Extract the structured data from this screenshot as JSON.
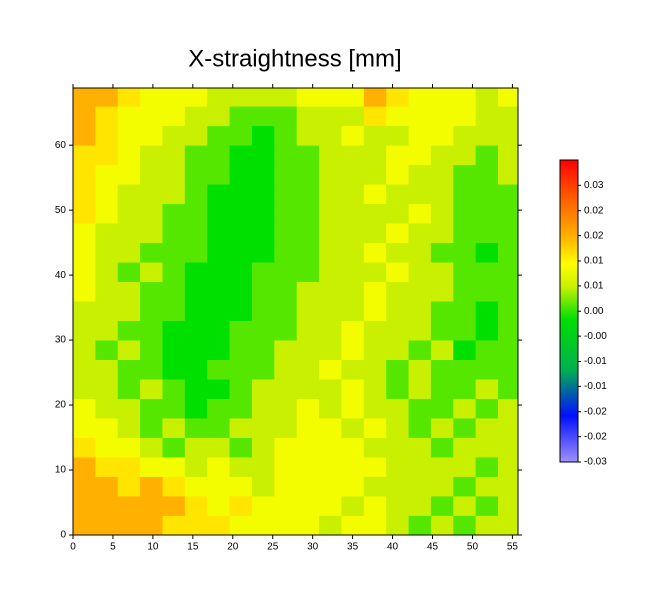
{
  "chart_data": {
    "type": "heatmap",
    "title": "X-straightness [mm]",
    "xlim": [
      0,
      55.7
    ],
    "ylim": [
      0,
      68.8
    ],
    "xticks": [
      0,
      5,
      10,
      15,
      20,
      25,
      30,
      35,
      40,
      45,
      50,
      55
    ],
    "yticks": [
      0,
      10,
      20,
      30,
      40,
      50,
      60
    ],
    "xbins": [
      0,
      2.8,
      5.6,
      8.4,
      11.2,
      14,
      16.8,
      19.6,
      22.4,
      25.2,
      28,
      30.8,
      33.6,
      36.4,
      39.2,
      42,
      44.8,
      47.6,
      50.4,
      53.2,
      55.7
    ],
    "ybins": [
      0,
      3,
      6,
      9,
      12,
      15,
      18,
      21,
      24,
      27,
      30,
      33,
      36,
      39,
      42,
      45,
      48,
      51,
      54,
      57,
      60,
      63,
      66,
      68.8
    ],
    "z": [
      [
        0.019,
        0.019,
        0.019,
        0.019,
        0.015,
        0.015,
        0.015,
        0.012,
        0.012,
        0.012,
        0.012,
        0.008,
        0.012,
        0.012,
        0.008,
        0.004,
        0.008,
        0.004,
        0.008,
        0.008
      ],
      [
        0.019,
        0.019,
        0.019,
        0.019,
        0.019,
        0.015,
        0.012,
        0.015,
        0.012,
        0.012,
        0.012,
        0.012,
        0.008,
        0.012,
        0.008,
        0.008,
        0.004,
        0.008,
        0.004,
        0.008
      ],
      [
        0.019,
        0.019,
        0.015,
        0.019,
        0.015,
        0.012,
        0.012,
        0.012,
        0.008,
        0.012,
        0.012,
        0.012,
        0.012,
        0.008,
        0.008,
        0.008,
        0.008,
        0.004,
        0.008,
        0.008
      ],
      [
        0.019,
        0.015,
        0.015,
        0.012,
        0.012,
        0.008,
        0.012,
        0.008,
        0.008,
        0.012,
        0.012,
        0.012,
        0.012,
        0.012,
        0.008,
        0.008,
        0.008,
        0.008,
        0.004,
        0.008
      ],
      [
        0.015,
        0.012,
        0.012,
        0.008,
        0.004,
        0.008,
        0.008,
        0.004,
        0.008,
        0.012,
        0.012,
        0.012,
        0.012,
        0.008,
        0.008,
        0.008,
        0.004,
        0.008,
        0.008,
        0.008
      ],
      [
        0.012,
        0.012,
        0.008,
        0.004,
        0.008,
        0.004,
        0.004,
        0.008,
        0.008,
        0.008,
        0.012,
        0.012,
        0.008,
        0.012,
        0.008,
        0.004,
        0.008,
        0.004,
        0.008,
        0.008
      ],
      [
        0.012,
        0.008,
        0.008,
        0.004,
        0.004,
        0.001,
        0.004,
        0.004,
        0.008,
        0.008,
        0.012,
        0.008,
        0.012,
        0.008,
        0.008,
        0.004,
        0.004,
        0.008,
        0.004,
        0.008
      ],
      [
        0.008,
        0.008,
        0.004,
        0.008,
        0.004,
        0.001,
        0.001,
        0.004,
        0.008,
        0.008,
        0.008,
        0.008,
        0.012,
        0.008,
        0.004,
        0.008,
        0.004,
        0.004,
        0.008,
        0.004
      ],
      [
        0.008,
        0.008,
        0.004,
        0.004,
        0.001,
        0.001,
        0.004,
        0.004,
        0.004,
        0.008,
        0.008,
        0.012,
        0.008,
        0.008,
        0.004,
        0.008,
        0.004,
        0.004,
        0.004,
        0.004
      ],
      [
        0.008,
        0.004,
        0.008,
        0.004,
        0.001,
        0.001,
        0.001,
        0.004,
        0.004,
        0.008,
        0.008,
        0.008,
        0.012,
        0.008,
        0.008,
        0.004,
        0.008,
        0.001,
        0.004,
        0.004
      ],
      [
        0.008,
        0.008,
        0.004,
        0.004,
        0.001,
        0.001,
        0.001,
        0.004,
        0.004,
        0.004,
        0.008,
        0.008,
        0.012,
        0.008,
        0.008,
        0.008,
        0.004,
        0.004,
        0.001,
        0.004
      ],
      [
        0.008,
        0.008,
        0.008,
        0.004,
        0.004,
        0.001,
        0.001,
        0.001,
        0.004,
        0.004,
        0.008,
        0.008,
        0.008,
        0.012,
        0.008,
        0.008,
        0.004,
        0.004,
        0.001,
        0.004
      ],
      [
        0.012,
        0.008,
        0.008,
        0.004,
        0.004,
        0.001,
        0.001,
        0.001,
        0.004,
        0.004,
        0.008,
        0.008,
        0.008,
        0.012,
        0.008,
        0.008,
        0.008,
        0.004,
        0.004,
        0.004
      ],
      [
        0.012,
        0.008,
        0.004,
        0.008,
        0.004,
        0.001,
        0.001,
        0.001,
        0.004,
        0.004,
        0.004,
        0.008,
        0.008,
        0.008,
        0.012,
        0.008,
        0.008,
        0.004,
        0.004,
        0.004
      ],
      [
        0.012,
        0.008,
        0.008,
        0.004,
        0.004,
        0.004,
        0.001,
        0.001,
        0.001,
        0.004,
        0.004,
        0.008,
        0.008,
        0.012,
        0.008,
        0.008,
        0.004,
        0.004,
        0.001,
        0.004
      ],
      [
        0.012,
        0.008,
        0.008,
        0.008,
        0.004,
        0.004,
        0.001,
        0.001,
        0.001,
        0.004,
        0.004,
        0.008,
        0.008,
        0.008,
        0.012,
        0.008,
        0.008,
        0.004,
        0.004,
        0.004
      ],
      [
        0.015,
        0.012,
        0.008,
        0.008,
        0.004,
        0.004,
        0.001,
        0.001,
        0.001,
        0.004,
        0.004,
        0.008,
        0.008,
        0.008,
        0.008,
        0.012,
        0.008,
        0.004,
        0.004,
        0.004
      ],
      [
        0.015,
        0.012,
        0.008,
        0.008,
        0.008,
        0.004,
        0.001,
        0.001,
        0.001,
        0.004,
        0.004,
        0.008,
        0.008,
        0.012,
        0.008,
        0.008,
        0.008,
        0.004,
        0.004,
        0.004
      ],
      [
        0.015,
        0.012,
        0.012,
        0.008,
        0.008,
        0.004,
        0.004,
        0.001,
        0.001,
        0.004,
        0.004,
        0.008,
        0.008,
        0.008,
        0.012,
        0.008,
        0.008,
        0.004,
        0.004,
        0.008
      ],
      [
        0.015,
        0.015,
        0.012,
        0.008,
        0.008,
        0.004,
        0.004,
        0.001,
        0.001,
        0.004,
        0.004,
        0.008,
        0.008,
        0.008,
        0.012,
        0.012,
        0.008,
        0.008,
        0.004,
        0.008
      ],
      [
        0.019,
        0.015,
        0.012,
        0.012,
        0.008,
        0.008,
        0.004,
        0.004,
        0.001,
        0.004,
        0.008,
        0.008,
        0.012,
        0.008,
        0.008,
        0.012,
        0.012,
        0.008,
        0.008,
        0.008
      ],
      [
        0.019,
        0.015,
        0.012,
        0.012,
        0.012,
        0.008,
        0.008,
        0.004,
        0.004,
        0.004,
        0.008,
        0.008,
        0.008,
        0.015,
        0.012,
        0.012,
        0.012,
        0.012,
        0.008,
        0.008
      ],
      [
        0.019,
        0.019,
        0.015,
        0.012,
        0.012,
        0.012,
        0.008,
        0.008,
        0.008,
        0.008,
        0.012,
        0.012,
        0.012,
        0.019,
        0.015,
        0.012,
        0.012,
        0.012,
        0.008,
        0.012
      ]
    ],
    "clim": [
      -0.03,
      0.0355
    ],
    "cticks": [
      {
        "value": 0.03,
        "label": "0.03"
      },
      {
        "value": 0.0245,
        "label": "0.02"
      },
      {
        "value": 0.0191,
        "label": "0.02"
      },
      {
        "value": 0.0136,
        "label": "0.01"
      },
      {
        "value": 0.0082,
        "label": "0.01"
      },
      {
        "value": 0.0027,
        "label": "0.00"
      },
      {
        "value": -0.0027,
        "label": "-0.00"
      },
      {
        "value": -0.0082,
        "label": "-0.01"
      },
      {
        "value": -0.0136,
        "label": "-0.01"
      },
      {
        "value": -0.0191,
        "label": "-0.02"
      },
      {
        "value": -0.0245,
        "label": "-0.02"
      },
      {
        "value": -0.03,
        "label": "-0.03"
      }
    ],
    "colorscale": [
      {
        "value": -0.03,
        "color": "#a090ff"
      },
      {
        "value": -0.02,
        "color": "#0010ff"
      },
      {
        "value": -0.01,
        "color": "#00b050"
      },
      {
        "value": 0.001,
        "color": "#00e000"
      },
      {
        "value": 0.008,
        "color": "#c8f000"
      },
      {
        "value": 0.013,
        "color": "#ffff00"
      },
      {
        "value": 0.019,
        "color": "#ffb000"
      },
      {
        "value": 0.027,
        "color": "#ff6000"
      },
      {
        "value": 0.0355,
        "color": "#ff0000"
      }
    ]
  }
}
